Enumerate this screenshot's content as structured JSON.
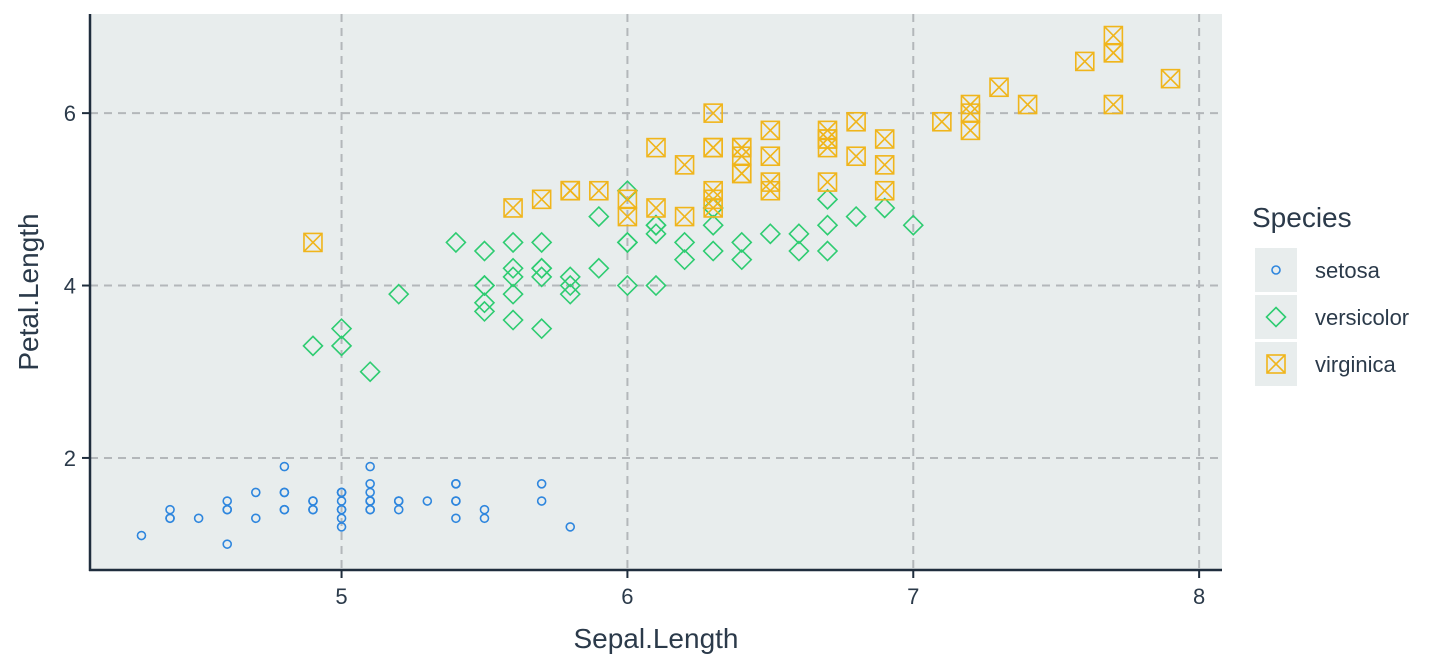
{
  "chart_data": {
    "type": "scatter",
    "title": "",
    "xlabel": "Sepal.Length",
    "ylabel": "Petal.Length",
    "xlim": [
      4.12,
      8.08
    ],
    "ylim": [
      0.7,
      7.15
    ],
    "xticks": [
      5,
      6,
      7,
      8
    ],
    "yticks": [
      2,
      4,
      6
    ],
    "grid": true,
    "grid_style": "dashed",
    "panel_background": "#e8eded",
    "legend": {
      "title": "Species",
      "position": "right"
    },
    "series": [
      {
        "name": "setosa",
        "marker": "circle",
        "color": "#2e86de",
        "points": [
          [
            5.1,
            1.4
          ],
          [
            4.9,
            1.4
          ],
          [
            4.7,
            1.3
          ],
          [
            4.6,
            1.5
          ],
          [
            5.0,
            1.4
          ],
          [
            5.4,
            1.7
          ],
          [
            4.6,
            1.4
          ],
          [
            5.0,
            1.5
          ],
          [
            4.4,
            1.4
          ],
          [
            4.9,
            1.5
          ],
          [
            5.4,
            1.5
          ],
          [
            4.8,
            1.6
          ],
          [
            4.8,
            1.4
          ],
          [
            4.3,
            1.1
          ],
          [
            5.8,
            1.2
          ],
          [
            5.7,
            1.5
          ],
          [
            5.4,
            1.3
          ],
          [
            5.1,
            1.4
          ],
          [
            5.7,
            1.7
          ],
          [
            5.1,
            1.5
          ],
          [
            5.4,
            1.7
          ],
          [
            5.1,
            1.5
          ],
          [
            4.6,
            1.0
          ],
          [
            5.1,
            1.7
          ],
          [
            4.8,
            1.9
          ],
          [
            5.0,
            1.6
          ],
          [
            5.0,
            1.6
          ],
          [
            5.2,
            1.5
          ],
          [
            5.2,
            1.4
          ],
          [
            4.7,
            1.6
          ],
          [
            4.8,
            1.6
          ],
          [
            5.4,
            1.5
          ],
          [
            5.2,
            1.5
          ],
          [
            5.5,
            1.4
          ],
          [
            4.9,
            1.5
          ],
          [
            5.0,
            1.2
          ],
          [
            5.5,
            1.3
          ],
          [
            4.9,
            1.4
          ],
          [
            4.4,
            1.3
          ],
          [
            5.1,
            1.5
          ],
          [
            5.0,
            1.3
          ],
          [
            4.5,
            1.3
          ],
          [
            4.4,
            1.3
          ],
          [
            5.0,
            1.6
          ],
          [
            5.1,
            1.9
          ],
          [
            4.8,
            1.4
          ],
          [
            5.1,
            1.6
          ],
          [
            4.6,
            1.4
          ],
          [
            5.3,
            1.5
          ],
          [
            5.0,
            1.4
          ]
        ]
      },
      {
        "name": "versicolor",
        "marker": "diamond",
        "color": "#2ecc71",
        "points": [
          [
            7.0,
            4.7
          ],
          [
            6.4,
            4.5
          ],
          [
            6.9,
            4.9
          ],
          [
            5.5,
            4.0
          ],
          [
            6.5,
            4.6
          ],
          [
            5.7,
            4.5
          ],
          [
            6.3,
            4.7
          ],
          [
            4.9,
            3.3
          ],
          [
            6.6,
            4.6
          ],
          [
            5.2,
            3.9
          ],
          [
            5.0,
            3.5
          ],
          [
            5.9,
            4.2
          ],
          [
            6.0,
            4.0
          ],
          [
            6.1,
            4.7
          ],
          [
            5.6,
            3.6
          ],
          [
            6.7,
            4.4
          ],
          [
            5.6,
            4.5
          ],
          [
            5.8,
            4.1
          ],
          [
            6.2,
            4.5
          ],
          [
            5.6,
            3.9
          ],
          [
            5.9,
            4.8
          ],
          [
            6.1,
            4.0
          ],
          [
            6.3,
            4.9
          ],
          [
            6.1,
            4.7
          ],
          [
            6.4,
            4.3
          ],
          [
            6.6,
            4.4
          ],
          [
            6.8,
            4.8
          ],
          [
            6.7,
            5.0
          ],
          [
            6.0,
            4.5
          ],
          [
            5.7,
            3.5
          ],
          [
            5.5,
            3.8
          ],
          [
            5.5,
            3.7
          ],
          [
            5.8,
            3.9
          ],
          [
            6.0,
            5.1
          ],
          [
            5.4,
            4.5
          ],
          [
            6.0,
            4.5
          ],
          [
            6.7,
            4.7
          ],
          [
            6.3,
            4.4
          ],
          [
            5.6,
            4.1
          ],
          [
            5.5,
            4.0
          ],
          [
            5.5,
            4.4
          ],
          [
            6.1,
            4.6
          ],
          [
            5.8,
            4.0
          ],
          [
            5.0,
            3.3
          ],
          [
            5.6,
            4.2
          ],
          [
            5.7,
            4.2
          ],
          [
            5.7,
            4.2
          ],
          [
            6.2,
            4.3
          ],
          [
            5.1,
            3.0
          ],
          [
            5.7,
            4.1
          ]
        ]
      },
      {
        "name": "virginica",
        "marker": "square-cross",
        "color": "#f0b51b",
        "points": [
          [
            6.3,
            6.0
          ],
          [
            5.8,
            5.1
          ],
          [
            7.1,
            5.9
          ],
          [
            6.3,
            5.6
          ],
          [
            6.5,
            5.8
          ],
          [
            7.6,
            6.6
          ],
          [
            4.9,
            4.5
          ],
          [
            7.3,
            6.3
          ],
          [
            6.7,
            5.8
          ],
          [
            7.2,
            6.1
          ],
          [
            6.5,
            5.1
          ],
          [
            6.4,
            5.3
          ],
          [
            6.8,
            5.5
          ],
          [
            5.7,
            5.0
          ],
          [
            5.8,
            5.1
          ],
          [
            6.4,
            5.3
          ],
          [
            6.5,
            5.5
          ],
          [
            7.7,
            6.7
          ],
          [
            7.7,
            6.9
          ],
          [
            6.0,
            5.0
          ],
          [
            6.9,
            5.7
          ],
          [
            5.6,
            4.9
          ],
          [
            7.7,
            6.7
          ],
          [
            6.3,
            4.9
          ],
          [
            6.7,
            5.7
          ],
          [
            7.2,
            6.0
          ],
          [
            6.2,
            4.8
          ],
          [
            6.1,
            4.9
          ],
          [
            6.4,
            5.6
          ],
          [
            7.2,
            5.8
          ],
          [
            7.4,
            6.1
          ],
          [
            7.9,
            6.4
          ],
          [
            6.4,
            5.6
          ],
          [
            6.3,
            5.1
          ],
          [
            6.1,
            5.6
          ],
          [
            7.7,
            6.1
          ],
          [
            6.3,
            5.6
          ],
          [
            6.4,
            5.5
          ],
          [
            6.0,
            4.8
          ],
          [
            6.9,
            5.4
          ],
          [
            6.7,
            5.6
          ],
          [
            6.9,
            5.1
          ],
          [
            5.8,
            5.1
          ],
          [
            6.8,
            5.9
          ],
          [
            6.7,
            5.7
          ],
          [
            6.7,
            5.2
          ],
          [
            6.3,
            5.0
          ],
          [
            6.5,
            5.2
          ],
          [
            6.2,
            5.4
          ],
          [
            5.9,
            5.1
          ]
        ]
      }
    ]
  }
}
